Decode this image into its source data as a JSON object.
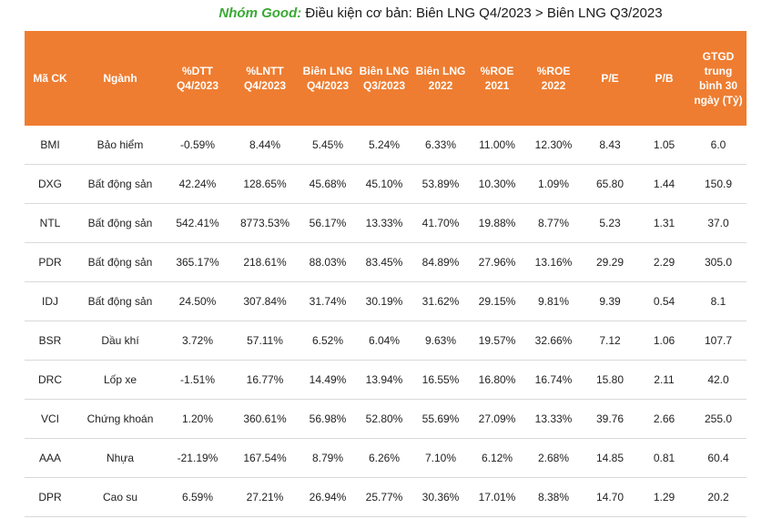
{
  "title": {
    "brand": "Nhóm Good:",
    "text": " Điều kiện cơ bản: Biên LNG Q4/2023 > Biên LNG Q3/2023"
  },
  "table": {
    "headers": [
      "Mã CK",
      "Ngành",
      "%DTT Q4/2023",
      "%LNTT Q4/2023",
      "Biên LNG Q4/2023",
      "Biên LNG Q3/2023",
      "Biên LNG 2022",
      "%ROE 2021",
      "%ROE 2022",
      "P/E",
      "P/B",
      "GTGD trung bình 30 ngày (Tỷ)"
    ],
    "rows": [
      [
        "BMI",
        "Bảo hiểm",
        "-0.59%",
        "8.44%",
        "5.45%",
        "5.24%",
        "6.33%",
        "11.00%",
        "12.30%",
        "8.43",
        "1.05",
        "6.0"
      ],
      [
        "DXG",
        "Bất động sản",
        "42.24%",
        "128.65%",
        "45.68%",
        "45.10%",
        "53.89%",
        "10.30%",
        "1.09%",
        "65.80",
        "1.44",
        "150.9"
      ],
      [
        "NTL",
        "Bất động sản",
        "542.41%",
        "8773.53%",
        "56.17%",
        "13.33%",
        "41.70%",
        "19.88%",
        "8.77%",
        "5.23",
        "1.31",
        "37.0"
      ],
      [
        "PDR",
        "Bất động sản",
        "365.17%",
        "218.61%",
        "88.03%",
        "83.45%",
        "84.89%",
        "27.96%",
        "13.16%",
        "29.29",
        "2.29",
        "305.0"
      ],
      [
        "IDJ",
        "Bất động sản",
        "24.50%",
        "307.84%",
        "31.74%",
        "30.19%",
        "31.62%",
        "29.15%",
        "9.81%",
        "9.39",
        "0.54",
        "8.1"
      ],
      [
        "BSR",
        "Dầu khí",
        "3.72%",
        "57.11%",
        "6.52%",
        "6.04%",
        "9.63%",
        "19.57%",
        "32.66%",
        "7.12",
        "1.06",
        "107.7"
      ],
      [
        "DRC",
        "Lốp xe",
        "-1.51%",
        "16.77%",
        "14.49%",
        "13.94%",
        "16.55%",
        "16.80%",
        "16.74%",
        "15.80",
        "2.11",
        "42.0"
      ],
      [
        "VCI",
        "Chứng khoán",
        "1.20%",
        "360.61%",
        "56.98%",
        "52.80%",
        "55.69%",
        "27.09%",
        "13.33%",
        "39.76",
        "2.66",
        "255.0"
      ],
      [
        "AAA",
        "Nhựa",
        "-21.19%",
        "167.54%",
        "8.79%",
        "6.26%",
        "7.10%",
        "6.12%",
        "2.68%",
        "14.85",
        "0.81",
        "60.4"
      ],
      [
        "DPR",
        "Cao su",
        "6.59%",
        "27.21%",
        "26.94%",
        "25.77%",
        "30.36%",
        "17.01%",
        "8.38%",
        "14.70",
        "1.29",
        "20.2"
      ]
    ]
  }
}
